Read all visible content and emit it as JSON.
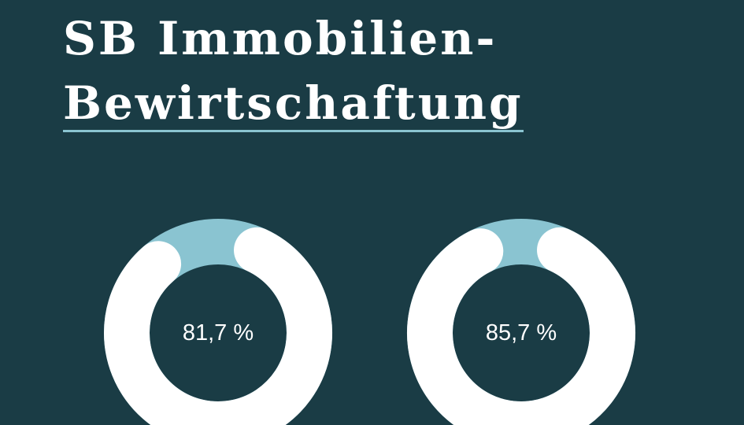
{
  "title": {
    "line1": "SB Immobilien-",
    "line2": "Bewirtschaftung"
  },
  "colors": {
    "background": "#1a3c45",
    "ring_value": "#ffffff",
    "ring_remainder": "#8ac4d1",
    "text": "#ffffff"
  },
  "chart_data": [
    {
      "type": "pie",
      "values": [
        81.7,
        18.3
      ],
      "label": "81,7 %"
    },
    {
      "type": "pie",
      "values": [
        85.7,
        14.3
      ],
      "label": "85,7 %"
    }
  ]
}
